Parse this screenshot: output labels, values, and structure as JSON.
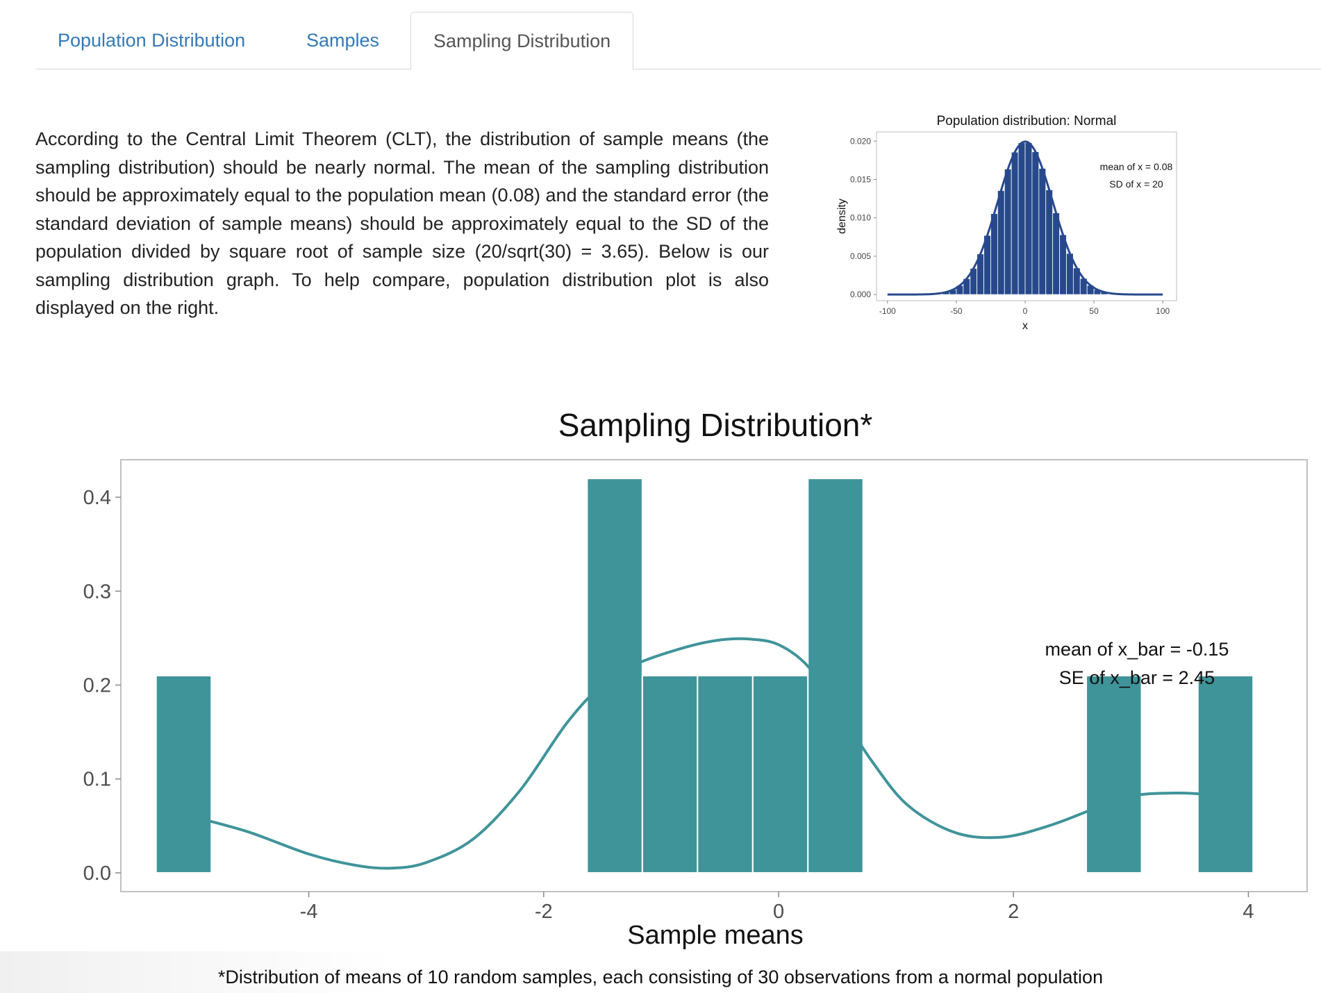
{
  "tabs": [
    {
      "label": "Population Distribution",
      "active": false
    },
    {
      "label": "Samples",
      "active": false
    },
    {
      "label": "Sampling Distribution",
      "active": true
    }
  ],
  "description": "According to the Central Limit Theorem (CLT), the distribution of sample means (the sampling distribution) should be nearly normal. The mean of the sampling distribution should be approximately equal to the population mean (0.08) and the standard error (the standard deviation of sample means) should be approximately equal to the SD of the population divided by square root of sample size (20/sqrt(30) = 3.65). Below is our sampling distribution graph. To help compare, population distribution plot is also displayed on the right.",
  "footnote": "*Distribution of means of 10 random samples, each consisting of 30 observations from a normal population",
  "colors": {
    "tab_link": "#337ab7",
    "population_fill": "#27498c",
    "sampling_fill": "#3f9499"
  },
  "chart_data": [
    {
      "id": "population",
      "type": "bar",
      "title": "Population distribution: Normal",
      "xlabel": "x",
      "ylabel": "density",
      "xlim": [
        -100,
        100
      ],
      "ylim": [
        0,
        0.02
      ],
      "xticks": [
        -100,
        -50,
        0,
        50,
        100
      ],
      "yticks": [
        0.0,
        0.005,
        0.01,
        0.015,
        0.02
      ],
      "ytick_labels": [
        "0.000",
        "0.005",
        "0.010",
        "0.015",
        "0.020"
      ],
      "mean": 0.08,
      "sd": 20,
      "bin_width": 5,
      "bin_range": [
        -60,
        60
      ],
      "annotations": [
        "mean of x = 0.08",
        "SD of x = 20"
      ],
      "legend": "none",
      "grid": false
    },
    {
      "id": "sampling",
      "type": "bar",
      "title": "Sampling Distribution*",
      "xlabel": "Sample means",
      "ylabel": "",
      "xlim": [
        -5.6,
        4.5
      ],
      "ylim": [
        -0.02,
        0.44
      ],
      "xticks": [
        -4,
        -2,
        0,
        2,
        4
      ],
      "yticks": [
        0.0,
        0.1,
        0.2,
        0.3,
        0.4
      ],
      "ytick_labels": [
        "0.0",
        "0.1",
        "0.2",
        "0.3",
        "0.4"
      ],
      "bins": [
        {
          "x0": -5.3,
          "x1": -4.83,
          "density": 0.21
        },
        {
          "x0": -1.63,
          "x1": -1.16,
          "density": 0.42
        },
        {
          "x0": -1.16,
          "x1": -0.69,
          "density": 0.21
        },
        {
          "x0": -0.69,
          "x1": -0.22,
          "density": 0.21
        },
        {
          "x0": -0.22,
          "x1": 0.25,
          "density": 0.21
        },
        {
          "x0": 0.25,
          "x1": 0.72,
          "density": 0.42
        },
        {
          "x0": 2.62,
          "x1": 3.09,
          "density": 0.21
        },
        {
          "x0": 3.57,
          "x1": 4.04,
          "density": 0.21
        }
      ],
      "density_curve": {
        "x": [
          -4.9,
          -4.5,
          -4.0,
          -3.6,
          -3.3,
          -3.0,
          -2.6,
          -2.2,
          -1.8,
          -1.5,
          -1.2,
          -0.8,
          -0.5,
          -0.25,
          0.0,
          0.25,
          0.5,
          0.8,
          1.1,
          1.5,
          1.9,
          2.3,
          2.7,
          3.0,
          3.4,
          3.7
        ],
        "y": [
          0.057,
          0.043,
          0.02,
          0.008,
          0.005,
          0.011,
          0.036,
          0.088,
          0.16,
          0.2,
          0.223,
          0.24,
          0.248,
          0.249,
          0.243,
          0.22,
          0.175,
          0.118,
          0.072,
          0.043,
          0.038,
          0.05,
          0.069,
          0.082,
          0.085,
          0.083
        ]
      },
      "annotations": [
        "mean of x_bar = -0.15",
        "SE of x_bar = 2.45"
      ],
      "legend": "none",
      "grid": false
    }
  ]
}
